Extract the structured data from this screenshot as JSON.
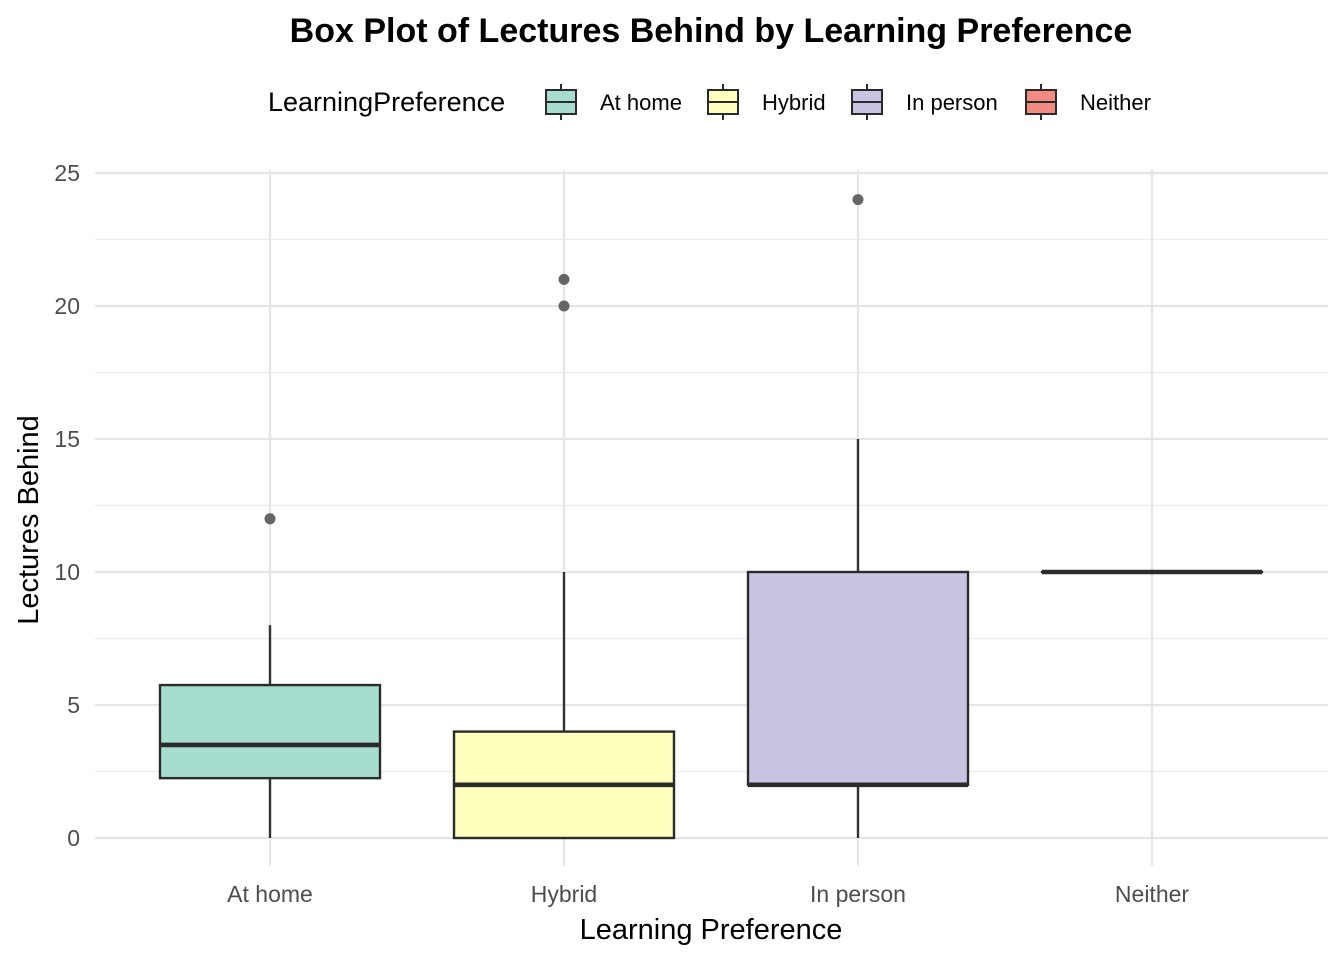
{
  "chart_data": {
    "type": "box",
    "title": "Box Plot of Lectures Behind by Learning Preference",
    "xlabel": "Learning Preference",
    "ylabel": "Lectures Behind",
    "ylim": [
      -1,
      25.5
    ],
    "yticks": [
      0,
      5,
      10,
      15,
      20,
      25
    ],
    "grid": true,
    "legend": {
      "title": "LearningPreference",
      "position": "top"
    },
    "categories": [
      "At home",
      "Hybrid",
      "In person",
      "Neither"
    ],
    "colors": [
      "#a6ddce",
      "#ffffbe",
      "#c9c4e1",
      "#f28b82"
    ],
    "boxes": [
      {
        "category": "At home",
        "min": 0,
        "q1": 2.25,
        "median": 3.5,
        "q3": 5.75,
        "max": 8,
        "outliers": [
          12
        ]
      },
      {
        "category": "Hybrid",
        "min": 0,
        "q1": 0,
        "median": 2,
        "q3": 4,
        "max": 10,
        "outliers": [
          20,
          21
        ]
      },
      {
        "category": "In person",
        "min": 0,
        "q1": 2,
        "median": 2,
        "q3": 10,
        "max": 15,
        "outliers": [
          24
        ]
      },
      {
        "category": "Neither",
        "min": 10,
        "q1": 10,
        "median": 10,
        "q3": 10,
        "max": 10,
        "outliers": []
      }
    ]
  }
}
